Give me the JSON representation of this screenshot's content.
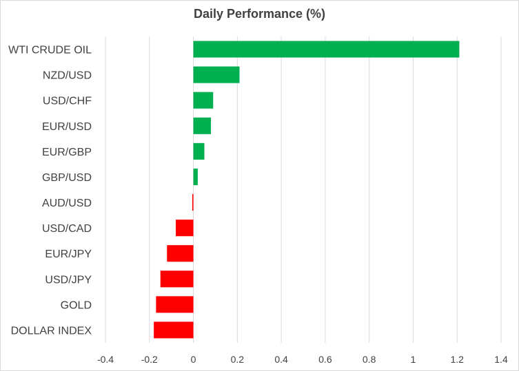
{
  "chart_data": {
    "type": "bar",
    "orientation": "horizontal",
    "title": "Daily Performance (%)",
    "xlabel": "",
    "ylabel": "",
    "categories": [
      "WTI CRUDE OIL",
      "NZD/USD",
      "USD/CHF",
      "EUR/USD",
      "EUR/GBP",
      "GBP/USD",
      "AUD/USD",
      "USD/CAD",
      "EUR/JPY",
      "USD/JPY",
      "GOLD",
      "DOLLAR INDEX"
    ],
    "values": [
      1.21,
      0.21,
      0.09,
      0.08,
      0.05,
      0.02,
      -0.005,
      -0.08,
      -0.12,
      -0.15,
      -0.17,
      -0.18
    ],
    "xlim": [
      -0.4,
      1.4
    ],
    "xticks": [
      -0.4,
      -0.2,
      0,
      0.2,
      0.4,
      0.6,
      0.8,
      1,
      1.2,
      1.4
    ],
    "xtick_labels": [
      "-0.4",
      "-0.2",
      "0",
      "0.2",
      "0.4",
      "0.6",
      "0.8",
      "1",
      "1.2",
      "1.4"
    ],
    "grid": "vertical",
    "legend": "none",
    "colors": {
      "positive": "#00b050",
      "negative": "#ff0000",
      "grid": "#d9d9d9",
      "text": "#404040"
    }
  }
}
